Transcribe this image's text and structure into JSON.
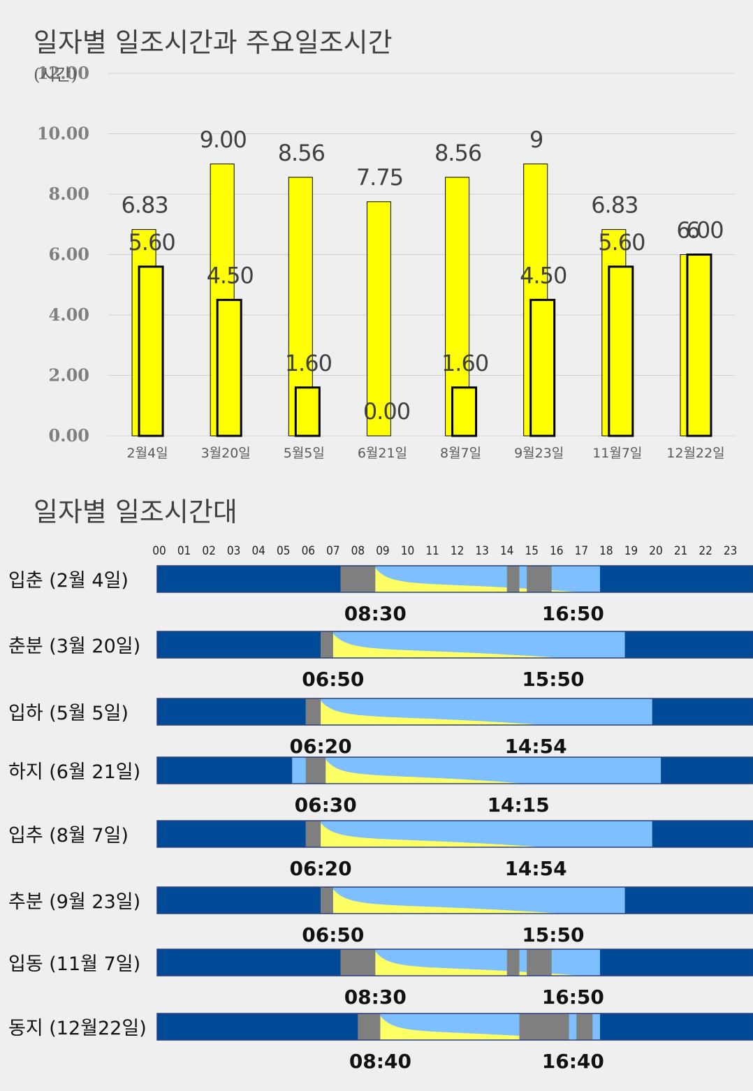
{
  "titles": {
    "chart1": "일자별 일조시간과 주요일조시간",
    "chart2": "일자별 일조시간대"
  },
  "colors": {
    "bar_fill": "#ffff00",
    "bar_outline": "#000000",
    "night": "#004a98",
    "daylight": "#7dbfff",
    "sunlight": "#ffff66",
    "shade": "#7f7f7f",
    "grid": "#d0d0d0"
  },
  "chart_data": [
    {
      "type": "bar",
      "title": "일자별 일조시간과 주요일조시간",
      "ylabel": "(시간)",
      "ylim": [
        0,
        12
      ],
      "yticks": [
        "0.00",
        "2.00",
        "4.00",
        "6.00",
        "8.00",
        "10.00",
        "12.00"
      ],
      "categories": [
        "2월4일",
        "3월20일",
        "5월5일",
        "6월21일",
        "8월7일",
        "9월23일",
        "11월7일",
        "12월22일"
      ],
      "grid": true,
      "series": [
        {
          "values": [
            6.83,
            9.0,
            8.56,
            7.75,
            8.56,
            9.0,
            6.83,
            6.0
          ],
          "labels": [
            "6.83",
            "9.00",
            "8.56",
            "7.75",
            "8.56",
            "9",
            "6.83",
            "6"
          ]
        },
        {
          "values": [
            5.6,
            4.5,
            1.6,
            0.0,
            1.6,
            4.5,
            5.6,
            6.0
          ],
          "labels": [
            "5.60",
            "4.50",
            "1.60",
            "0.00",
            "1.60",
            "4.50",
            "5.60",
            "6.00"
          ]
        }
      ]
    },
    {
      "type": "table",
      "title": "일자별 일조시간대",
      "hours": [
        "00",
        "01",
        "02",
        "03",
        "04",
        "05",
        "06",
        "07",
        "08",
        "09",
        "10",
        "11",
        "12",
        "13",
        "14",
        "15",
        "16",
        "17",
        "18",
        "19",
        "20",
        "21",
        "22",
        "23"
      ],
      "rows": [
        {
          "label": "입춘 (2월 4일)",
          "day_start": 7.3,
          "day_end": 17.75,
          "sun_start": 8.7,
          "sun_end": 17.0,
          "shade": [
            [
              7.3,
              8.7
            ],
            [
              14.0,
              14.5
            ],
            [
              14.8,
              15.8
            ]
          ],
          "start_time": "08:30",
          "end_time": "16:50"
        },
        {
          "label": "춘분 (3월 20일)",
          "day_start": 6.5,
          "day_end": 18.75,
          "sun_start": 7.0,
          "sun_end": 16.2,
          "shade": [
            [
              6.5,
              7.0
            ]
          ],
          "start_time": "06:50",
          "end_time": "15:50"
        },
        {
          "label": "입하 (5월 5일)",
          "day_start": 5.9,
          "day_end": 19.85,
          "sun_start": 6.5,
          "sun_end": 15.5,
          "shade": [
            [
              5.9,
              6.5
            ]
          ],
          "start_time": "06:20",
          "end_time": "14:54"
        },
        {
          "label": "하지 (6월 21일)",
          "day_start": 5.35,
          "day_end": 20.2,
          "sun_start": 6.7,
          "sun_end": 14.8,
          "shade": [
            [
              5.9,
              6.7
            ]
          ],
          "start_time": "06:30",
          "end_time": "14:15"
        },
        {
          "label": "입추 (8월 7일)",
          "day_start": 5.9,
          "day_end": 19.85,
          "sun_start": 6.5,
          "sun_end": 15.5,
          "shade": [
            [
              5.9,
              6.5
            ]
          ],
          "start_time": "06:20",
          "end_time": "14:54"
        },
        {
          "label": "추분 (9월 23일)",
          "day_start": 6.5,
          "day_end": 18.75,
          "sun_start": 7.0,
          "sun_end": 16.2,
          "shade": [
            [
              6.5,
              7.0
            ]
          ],
          "start_time": "06:50",
          "end_time": "15:50"
        },
        {
          "label": "입동 (11월 7일)",
          "day_start": 7.3,
          "day_end": 17.75,
          "sun_start": 8.7,
          "sun_end": 17.0,
          "shade": [
            [
              7.3,
              8.7
            ],
            [
              14.0,
              14.5
            ],
            [
              14.8,
              15.8
            ]
          ],
          "start_time": "08:30",
          "end_time": "16:50"
        },
        {
          "label": "동지 (12월22일)",
          "day_start": 8.0,
          "day_end": 17.75,
          "sun_start": 8.9,
          "sun_end": 17.0,
          "shade": [
            [
              8.0,
              8.9
            ],
            [
              14.5,
              16.5
            ],
            [
              16.8,
              17.45
            ]
          ],
          "start_time": "08:40",
          "end_time": "16:40"
        }
      ]
    }
  ]
}
